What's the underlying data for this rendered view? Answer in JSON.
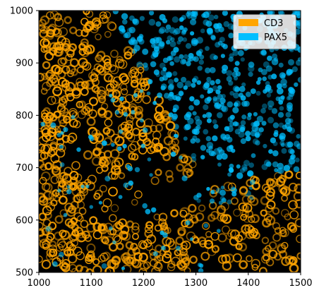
{
  "figure": {
    "xticks": [
      "1000",
      "1100",
      "1200",
      "1300",
      "1400",
      "1500"
    ],
    "yticks": [
      "1000",
      "900",
      "800",
      "700",
      "600",
      "500"
    ],
    "xlim": [
      1000,
      1500
    ],
    "ylim": [
      500,
      1000
    ]
  },
  "legend": {
    "placement": "top-right",
    "entries": [
      {
        "label": "CD3",
        "color": "#ffa500"
      },
      {
        "label": "PAX5",
        "color": "#00bfff"
      }
    ]
  },
  "colors": {
    "background": "#000000",
    "cd3": "#ffa500",
    "pax5": "#00bfff"
  }
}
